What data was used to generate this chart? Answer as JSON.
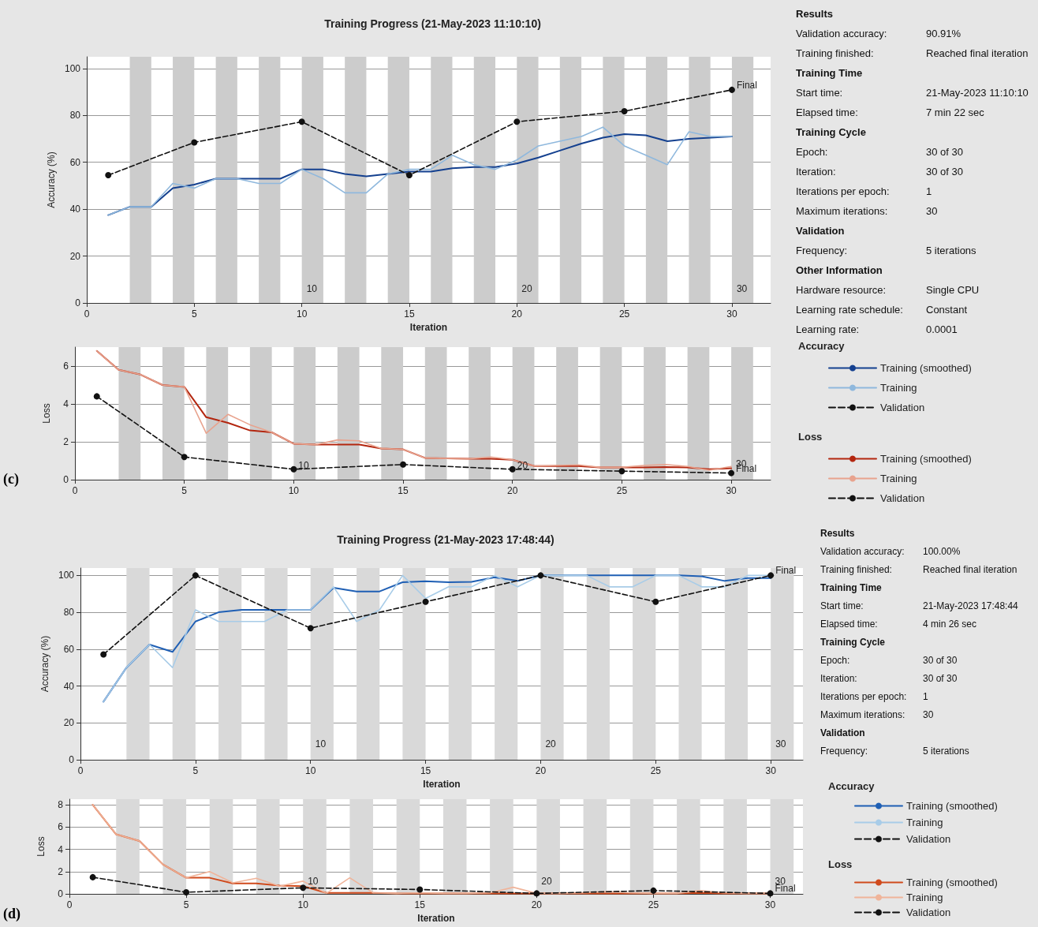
{
  "chart_data": [
    {
      "type": "line",
      "title": "Training Progress (21-May-2023 11:10:10)",
      "xlabel": "Iteration",
      "ylabel": "Accuracy (%)",
      "legend_title": "Accuracy",
      "legend": "right",
      "grid": "y",
      "x": [
        1,
        2,
        3,
        4,
        5,
        6,
        7,
        8,
        9,
        10,
        11,
        12,
        13,
        14,
        15,
        16,
        17,
        18,
        19,
        20,
        21,
        22,
        23,
        24,
        25,
        26,
        27,
        28,
        29,
        30
      ],
      "xlim": [
        0,
        31.8
      ],
      "xticks": [
        0,
        5,
        10,
        15,
        20,
        25,
        30
      ],
      "ylim": [
        0,
        105
      ],
      "yticks": [
        0,
        20,
        40,
        60,
        80,
        100
      ],
      "series": [
        {
          "name": "Training (smoothed)",
          "color": "#14408f",
          "marker": "none",
          "line_style": "solid",
          "values": [
            37.5,
            41,
            41,
            49,
            50.5,
            53,
            53,
            53,
            53,
            57,
            57,
            55,
            54,
            55,
            56,
            56,
            57.5,
            58,
            58,
            59.5,
            62,
            65,
            68,
            70.5,
            72,
            71.5,
            69,
            70,
            70.5,
            71
          ]
        },
        {
          "name": "Training",
          "color": "#8fb8dd",
          "marker": "none",
          "line_style": "solid",
          "values": [
            37.5,
            41,
            41,
            51,
            49,
            53,
            53,
            51,
            51,
            57,
            53,
            47,
            47,
            55,
            57,
            57,
            63,
            59,
            57,
            61,
            67,
            69,
            71,
            75,
            67,
            63,
            59,
            73,
            71,
            71
          ]
        },
        {
          "name": "Validation",
          "color": "#111111",
          "marker": "circle",
          "line_style": "dashed",
          "x": [
            1,
            5,
            10,
            15,
            20,
            25,
            30
          ],
          "values": [
            54.5,
            68.5,
            77.3,
            54.5,
            77.3,
            81.8,
            90.91
          ]
        }
      ],
      "bands": [
        {
          "axis": "x",
          "from": 2,
          "to": 3,
          "color": "#cccccc"
        },
        {
          "axis": "x",
          "from": 4,
          "to": 5,
          "color": "#cccccc"
        },
        {
          "axis": "x",
          "from": 6,
          "to": 7,
          "color": "#cccccc"
        },
        {
          "axis": "x",
          "from": 8,
          "to": 9,
          "color": "#cccccc"
        },
        {
          "axis": "x",
          "from": 10,
          "to": 11,
          "color": "#cccccc"
        },
        {
          "axis": "x",
          "from": 12,
          "to": 13,
          "color": "#cccccc"
        },
        {
          "axis": "x",
          "from": 14,
          "to": 15,
          "color": "#cccccc"
        },
        {
          "axis": "x",
          "from": 16,
          "to": 17,
          "color": "#cccccc"
        },
        {
          "axis": "x",
          "from": 18,
          "to": 19,
          "color": "#cccccc"
        },
        {
          "axis": "x",
          "from": 20,
          "to": 21,
          "color": "#cccccc"
        },
        {
          "axis": "x",
          "from": 22,
          "to": 23,
          "color": "#cccccc"
        },
        {
          "axis": "x",
          "from": 24,
          "to": 25,
          "color": "#cccccc"
        },
        {
          "axis": "x",
          "from": 26,
          "to": 27,
          "color": "#cccccc"
        },
        {
          "axis": "x",
          "from": 28,
          "to": 29,
          "color": "#cccccc"
        },
        {
          "axis": "x",
          "from": 30,
          "to": 31,
          "color": "#cccccc"
        }
      ],
      "annotations": [
        {
          "text": "10",
          "x": 10,
          "y": 4
        },
        {
          "text": "20",
          "x": 20,
          "y": 4
        },
        {
          "text": "30",
          "x": 30,
          "y": 4
        },
        {
          "text": "Final",
          "x": 30,
          "y": 90.91
        }
      ]
    },
    {
      "type": "other",
      "annotations": [
        "Results",
        "Validation accuracy:\t90.91%",
        "Training finished:\tReached final iteration",
        "Training Time",
        "Start time:\t21-May-2023 11:10:10",
        "Elapsed time:\t7 min 22 sec",
        "Training Cycle",
        "Epoch:\t30 of 30",
        "Iteration:\t30 of 30",
        "Iterations per epoch:\t1",
        "Maximum iterations:\t30",
        "Validation",
        "Frequency:\t5 iterations",
        "Other Information",
        "Hardware resource:\tSingle CPU",
        "Learning rate schedule:\tConstant",
        "Learning rate:\t0.0001"
      ]
    },
    {
      "type": "line",
      "ylabel": "Loss",
      "legend_title": "Loss",
      "legend": "right",
      "grid": "y",
      "x": [
        1,
        2,
        3,
        4,
        5,
        6,
        7,
        8,
        9,
        10,
        11,
        12,
        13,
        14,
        15,
        16,
        17,
        18,
        19,
        20,
        21,
        22,
        23,
        24,
        25,
        26,
        27,
        28,
        29,
        30
      ],
      "xlim": [
        0,
        31.8
      ],
      "xticks": [
        0,
        5,
        10,
        15,
        20,
        25,
        30
      ],
      "ylim": [
        0,
        7
      ],
      "yticks": [
        0,
        2,
        4,
        6
      ],
      "series": [
        {
          "name": "Training (smoothed)",
          "color": "#b3260f",
          "marker": "none",
          "line_style": "solid",
          "values": [
            6.8,
            5.8,
            5.55,
            5.0,
            4.9,
            3.3,
            3.0,
            2.6,
            2.5,
            1.9,
            1.85,
            1.85,
            1.85,
            1.65,
            1.6,
            1.15,
            1.12,
            1.1,
            1.1,
            1.05,
            0.72,
            0.72,
            0.72,
            0.65,
            0.65,
            0.65,
            0.67,
            0.65,
            0.55,
            0.6
          ]
        },
        {
          "name": "Training",
          "color": "#e8a38e",
          "marker": "none",
          "line_style": "solid",
          "values": [
            6.8,
            5.8,
            5.55,
            5.0,
            4.9,
            2.45,
            3.45,
            2.9,
            2.5,
            1.9,
            1.85,
            2.1,
            2.05,
            1.65,
            1.6,
            1.15,
            1.12,
            1.1,
            1.2,
            1.05,
            0.72,
            0.75,
            0.78,
            0.65,
            0.65,
            0.75,
            0.8,
            0.7,
            0.5,
            0.7
          ]
        },
        {
          "name": "Validation",
          "color": "#111111",
          "marker": "circle",
          "line_style": "dashed",
          "x": [
            1,
            5,
            10,
            15,
            20,
            25,
            30
          ],
          "values": [
            4.4,
            1.2,
            0.55,
            0.8,
            0.55,
            0.45,
            0.35
          ]
        }
      ],
      "bands": [
        {
          "axis": "x",
          "from": 2,
          "to": 3,
          "color": "#cccccc"
        },
        {
          "axis": "x",
          "from": 4,
          "to": 5,
          "color": "#cccccc"
        },
        {
          "axis": "x",
          "from": 6,
          "to": 7,
          "color": "#cccccc"
        },
        {
          "axis": "x",
          "from": 8,
          "to": 9,
          "color": "#cccccc"
        },
        {
          "axis": "x",
          "from": 10,
          "to": 11,
          "color": "#cccccc"
        },
        {
          "axis": "x",
          "from": 12,
          "to": 13,
          "color": "#cccccc"
        },
        {
          "axis": "x",
          "from": 14,
          "to": 15,
          "color": "#cccccc"
        },
        {
          "axis": "x",
          "from": 16,
          "to": 17,
          "color": "#cccccc"
        },
        {
          "axis": "x",
          "from": 18,
          "to": 19,
          "color": "#cccccc"
        },
        {
          "axis": "x",
          "from": 20,
          "to": 21,
          "color": "#cccccc"
        },
        {
          "axis": "x",
          "from": 22,
          "to": 23,
          "color": "#cccccc"
        },
        {
          "axis": "x",
          "from": 24,
          "to": 25,
          "color": "#cccccc"
        },
        {
          "axis": "x",
          "from": 26,
          "to": 27,
          "color": "#cccccc"
        },
        {
          "axis": "x",
          "from": 28,
          "to": 29,
          "color": "#cccccc"
        },
        {
          "axis": "x",
          "from": 30,
          "to": 31,
          "color": "#cccccc"
        }
      ],
      "annotations": [
        "(c)",
        {
          "text": "10",
          "x": 10,
          "y": 0.5
        },
        {
          "text": "20",
          "x": 20,
          "y": 0.5
        },
        {
          "text": "30",
          "x": 30,
          "y": 0.6
        },
        {
          "text": "Final",
          "x": 30,
          "y": 0.35
        }
      ]
    },
    {
      "type": "line",
      "title": "Training Progress (21-May-2023 17:48:44)",
      "xlabel": "Iteration",
      "ylabel": "Accuracy (%)",
      "legend_title": "Accuracy",
      "legend": "right",
      "grid": "y",
      "x": [
        1,
        2,
        3,
        4,
        5,
        6,
        7,
        8,
        9,
        10,
        11,
        12,
        13,
        14,
        15,
        16,
        17,
        18,
        19,
        20,
        21,
        22,
        23,
        24,
        25,
        26,
        27,
        28,
        29,
        30
      ],
      "xlim": [
        0,
        31.4
      ],
      "xticks": [
        0,
        5,
        10,
        15,
        20,
        25,
        30
      ],
      "ylim": [
        0,
        104
      ],
      "yticks": [
        0,
        20,
        40,
        60,
        80,
        100
      ],
      "series": [
        {
          "name": "Training (smoothed)",
          "color": "#1f5fb4",
          "marker": "none",
          "line_style": "solid",
          "values": [
            31.5,
            50,
            62.5,
            58.5,
            75,
            80,
            81.3,
            81.3,
            81.3,
            81.3,
            93.3,
            91.3,
            91.3,
            96.3,
            96.8,
            96.3,
            96.5,
            99,
            97,
            100,
            100,
            100,
            100,
            100,
            100,
            100,
            99.5,
            97,
            98.5,
            98.5
          ]
        },
        {
          "name": "Training",
          "color": "#a8cce8",
          "marker": "none",
          "line_style": "solid",
          "values": [
            31.5,
            50,
            62.5,
            50,
            81.3,
            75,
            75,
            75,
            81.3,
            81.3,
            93.8,
            75,
            81.3,
            100,
            87.5,
            93.8,
            93.8,
            100,
            93.8,
            100,
            100,
            100,
            93.8,
            93.8,
            100,
            100,
            93.8,
            93.8,
            100,
            100
          ]
        },
        {
          "name": "Validation",
          "color": "#111111",
          "marker": "circle",
          "line_style": "dashed",
          "x": [
            1,
            5,
            10,
            15,
            20,
            25,
            30
          ],
          "values": [
            57.1,
            100,
            71.4,
            85.7,
            100,
            85.7,
            100
          ]
        }
      ],
      "bands": [
        {
          "axis": "x",
          "from": 2,
          "to": 3,
          "color": "#d9d9d9"
        },
        {
          "axis": "x",
          "from": 4,
          "to": 5,
          "color": "#d9d9d9"
        },
        {
          "axis": "x",
          "from": 6,
          "to": 7,
          "color": "#d9d9d9"
        },
        {
          "axis": "x",
          "from": 8,
          "to": 9,
          "color": "#d9d9d9"
        },
        {
          "axis": "x",
          "from": 10,
          "to": 11,
          "color": "#d9d9d9"
        },
        {
          "axis": "x",
          "from": 12,
          "to": 13,
          "color": "#d9d9d9"
        },
        {
          "axis": "x",
          "from": 14,
          "to": 15,
          "color": "#d9d9d9"
        },
        {
          "axis": "x",
          "from": 16,
          "to": 17,
          "color": "#d9d9d9"
        },
        {
          "axis": "x",
          "from": 18,
          "to": 19,
          "color": "#d9d9d9"
        },
        {
          "axis": "x",
          "from": 20,
          "to": 21,
          "color": "#d9d9d9"
        },
        {
          "axis": "x",
          "from": 22,
          "to": 23,
          "color": "#d9d9d9"
        },
        {
          "axis": "x",
          "from": 24,
          "to": 25,
          "color": "#d9d9d9"
        },
        {
          "axis": "x",
          "from": 26,
          "to": 27,
          "color": "#d9d9d9"
        },
        {
          "axis": "x",
          "from": 28,
          "to": 29,
          "color": "#d9d9d9"
        },
        {
          "axis": "x",
          "from": 30,
          "to": 31,
          "color": "#d9d9d9"
        }
      ],
      "annotations": [
        {
          "text": "10",
          "x": 10,
          "y": 6
        },
        {
          "text": "20",
          "x": 20,
          "y": 6
        },
        {
          "text": "30",
          "x": 30,
          "y": 6
        },
        {
          "text": "Final",
          "x": 30,
          "y": 100
        }
      ]
    },
    {
      "type": "other",
      "annotations": [
        "Results",
        "Validation accuracy:\t100.00%",
        "Training finished:\tReached final iteration",
        "Training Time",
        "Start time:\t21-May-2023 17:48:44",
        "Elapsed time:\t4 min 26 sec",
        "Training Cycle",
        "Epoch:\t30 of 30",
        "Iteration:\t30 of 30",
        "Iterations per epoch:\t1",
        "Maximum iterations:\t30",
        "Validation",
        "Frequency:\t5 iterations"
      ]
    },
    {
      "type": "line",
      "xlabel": "Iteration",
      "ylabel": "Loss",
      "legend_title": "Loss",
      "legend": "right",
      "grid": "y",
      "x": [
        1,
        2,
        3,
        4,
        5,
        6,
        7,
        8,
        9,
        10,
        11,
        12,
        13,
        14,
        15,
        16,
        17,
        18,
        19,
        20,
        21,
        22,
        23,
        24,
        25,
        26,
        27,
        28,
        29,
        30
      ],
      "xlim": [
        0,
        31.4
      ],
      "xticks": [
        0,
        5,
        10,
        15,
        20,
        25,
        30
      ],
      "ylim": [
        0,
        8.5
      ],
      "yticks": [
        0,
        2,
        4,
        6,
        8
      ],
      "series": [
        {
          "name": "Training (smoothed)",
          "color": "#d04a1c",
          "marker": "none",
          "line_style": "solid",
          "values": [
            8.0,
            5.35,
            4.75,
            2.65,
            1.45,
            1.45,
            0.95,
            0.95,
            0.75,
            0.7,
            0.1,
            0.1,
            0.1,
            0.05,
            0.05,
            0.05,
            0.05,
            0.05,
            0.05,
            0.05,
            0.05,
            0.05,
            0.05,
            0.05,
            0.05,
            0.05,
            0.1,
            0.05,
            0.05,
            0.05
          ]
        },
        {
          "name": "Training",
          "color": "#f0b49a",
          "marker": "none",
          "line_style": "solid",
          "values": [
            8.0,
            5.35,
            4.75,
            2.65,
            1.45,
            2.0,
            1.0,
            1.4,
            0.7,
            1.15,
            0.05,
            1.45,
            0.1,
            0.05,
            0.1,
            0.05,
            0.05,
            0.1,
            0.6,
            0.05,
            0.05,
            0.1,
            0.2,
            0.1,
            0.05,
            0.05,
            0.3,
            0.1,
            0.05,
            0.05
          ]
        },
        {
          "name": "Validation",
          "color": "#111111",
          "marker": "circle",
          "line_style": "dashed",
          "x": [
            1,
            5,
            10,
            15,
            20,
            25,
            30
          ],
          "values": [
            1.5,
            0.15,
            0.55,
            0.4,
            0.05,
            0.3,
            0.05
          ]
        }
      ],
      "bands": [
        {
          "axis": "x",
          "from": 2,
          "to": 3,
          "color": "#d9d9d9"
        },
        {
          "axis": "x",
          "from": 4,
          "to": 5,
          "color": "#d9d9d9"
        },
        {
          "axis": "x",
          "from": 6,
          "to": 7,
          "color": "#d9d9d9"
        },
        {
          "axis": "x",
          "from": 8,
          "to": 9,
          "color": "#d9d9d9"
        },
        {
          "axis": "x",
          "from": 10,
          "to": 11,
          "color": "#d9d9d9"
        },
        {
          "axis": "x",
          "from": 12,
          "to": 13,
          "color": "#d9d9d9"
        },
        {
          "axis": "x",
          "from": 14,
          "to": 15,
          "color": "#d9d9d9"
        },
        {
          "axis": "x",
          "from": 16,
          "to": 17,
          "color": "#d9d9d9"
        },
        {
          "axis": "x",
          "from": 18,
          "to": 19,
          "color": "#d9d9d9"
        },
        {
          "axis": "x",
          "from": 20,
          "to": 21,
          "color": "#d9d9d9"
        },
        {
          "axis": "x",
          "from": 22,
          "to": 23,
          "color": "#d9d9d9"
        },
        {
          "axis": "x",
          "from": 24,
          "to": 25,
          "color": "#d9d9d9"
        },
        {
          "axis": "x",
          "from": 26,
          "to": 27,
          "color": "#d9d9d9"
        },
        {
          "axis": "x",
          "from": 28,
          "to": 29,
          "color": "#d9d9d9"
        },
        {
          "axis": "x",
          "from": 30,
          "to": 31,
          "color": "#d9d9d9"
        }
      ],
      "annotations": [
        "(d)",
        {
          "text": "10",
          "x": 10,
          "y": 0.7
        },
        {
          "text": "20",
          "x": 20,
          "y": 0.7
        },
        {
          "text": "30",
          "x": 30,
          "y": 0.7
        },
        {
          "text": "Final",
          "x": 30,
          "y": 0.05
        }
      ]
    }
  ]
}
